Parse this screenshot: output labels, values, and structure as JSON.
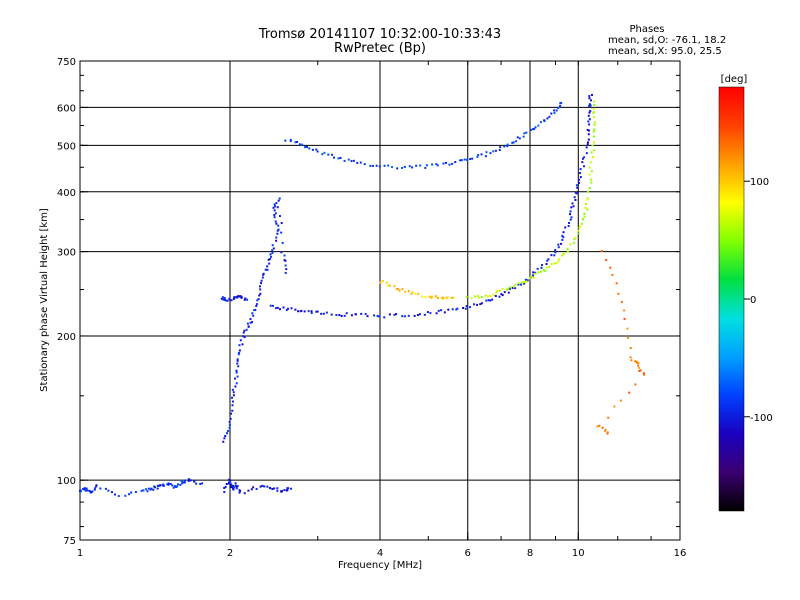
{
  "chart_data": {
    "type": "scatter",
    "title": "Tromsø 20141107 10:32:00-10:33:43",
    "subtitle": "RwPretec (Bp)",
    "xlabel": "Frequency [MHz]",
    "ylabel": "Stationary phase Virtual Height [km]",
    "xscale": "log",
    "yscale": "log",
    "xlim": [
      1,
      16
    ],
    "ylim": [
      75,
      750
    ],
    "xticks": [
      {
        "v": 1,
        "label": "1"
      },
      {
        "v": 2,
        "label": "2"
      },
      {
        "v": 4,
        "label": "4"
      },
      {
        "v": 6,
        "label": "6"
      },
      {
        "v": 8,
        "label": "8"
      },
      {
        "v": 10,
        "label": "10"
      },
      {
        "v": 16,
        "label": "16"
      }
    ],
    "yticks": [
      {
        "v": 75,
        "label": "75"
      },
      {
        "v": 100,
        "label": "100"
      },
      {
        "v": 200,
        "label": "200"
      },
      {
        "v": 300,
        "label": "300"
      },
      {
        "v": 400,
        "label": "400"
      },
      {
        "v": 500,
        "label": "500"
      },
      {
        "v": 600,
        "label": "600"
      },
      {
        "v": 750,
        "label": "750"
      }
    ],
    "xgrid": [
      2,
      4,
      6,
      8,
      10
    ],
    "ygrid": [
      100,
      200,
      300,
      400,
      500,
      600
    ],
    "grid": true,
    "stats": {
      "heading": "Phases",
      "line1": "mean, sd,O: -76.1, 18.2",
      "line2": "mean, sd,X:  95.0, 25.5"
    },
    "colorbar": {
      "label": "[deg]",
      "range": [
        -180,
        180
      ],
      "ticks": [
        {
          "v": 100,
          "label": "100"
        },
        {
          "v": 0,
          "label": "0"
        },
        {
          "v": -100,
          "label": "-100"
        }
      ],
      "colors": [
        "#000000",
        "#3a0070",
        "#1a00c0",
        "#0040ff",
        "#00a0ff",
        "#00e0e0",
        "#00e040",
        "#80ff00",
        "#ffff00",
        "#ffa000",
        "#ff4000",
        "#ff0000"
      ]
    },
    "series": [
      {
        "phase": -90,
        "points": [
          [
            1.0,
            95
          ],
          [
            1.03,
            96
          ],
          [
            1.05,
            94
          ],
          [
            1.08,
            97
          ],
          [
            1.2,
            93
          ],
          [
            1.35,
            95
          ],
          [
            1.4,
            96
          ],
          [
            1.45,
            97
          ],
          [
            1.5,
            98
          ],
          [
            1.55,
            97
          ],
          [
            1.6,
            99
          ],
          [
            1.65,
            100
          ],
          [
            1.75,
            98
          ]
        ]
      },
      {
        "phase": -100,
        "points": [
          [
            1.95,
            95
          ],
          [
            2.0,
            100
          ],
          [
            2.02,
            96
          ],
          [
            2.05,
            98
          ],
          [
            2.1,
            94
          ],
          [
            2.3,
            97
          ],
          [
            2.45,
            96
          ],
          [
            2.55,
            95
          ],
          [
            2.65,
            96
          ]
        ]
      },
      {
        "phase": -95,
        "points": [
          [
            1.95,
            120
          ],
          [
            2.0,
            130
          ],
          [
            2.02,
            145
          ],
          [
            2.05,
            160
          ],
          [
            2.08,
            175
          ],
          [
            2.1,
            190
          ],
          [
            2.15,
            205
          ],
          [
            2.2,
            215
          ],
          [
            2.25,
            230
          ],
          [
            2.3,
            250
          ],
          [
            2.35,
            270
          ],
          [
            2.4,
            290
          ],
          [
            2.45,
            310
          ],
          [
            2.5,
            340
          ],
          [
            2.45,
            365
          ],
          [
            2.5,
            385
          ],
          [
            2.55,
            300
          ],
          [
            2.6,
            270
          ]
        ]
      },
      {
        "phase": -100,
        "points": [
          [
            1.92,
            240
          ],
          [
            1.98,
            238
          ],
          [
            2.05,
            240
          ],
          [
            2.1,
            242
          ],
          [
            2.15,
            238
          ]
        ]
      },
      {
        "phase": -100,
        "points": [
          [
            2.4,
            230
          ],
          [
            2.6,
            228
          ],
          [
            2.8,
            226
          ],
          [
            3.0,
            224
          ],
          [
            3.3,
            222
          ],
          [
            3.6,
            221
          ],
          [
            4.0,
            220
          ],
          [
            4.5,
            221
          ],
          [
            5.0,
            223
          ],
          [
            5.5,
            226
          ],
          [
            6.0,
            230
          ],
          [
            6.5,
            236
          ],
          [
            7.0,
            243
          ],
          [
            7.5,
            253
          ],
          [
            8.0,
            265
          ],
          [
            8.5,
            280
          ],
          [
            9.0,
            300
          ],
          [
            9.3,
            320
          ],
          [
            9.6,
            350
          ],
          [
            9.8,
            380
          ],
          [
            10.0,
            410
          ],
          [
            10.2,
            450
          ],
          [
            10.4,
            500
          ],
          [
            10.5,
            550
          ],
          [
            10.55,
            600
          ],
          [
            10.6,
            640
          ]
        ]
      },
      {
        "phase": -85,
        "points": [
          [
            2.6,
            515
          ],
          [
            2.8,
            500
          ],
          [
            3.0,
            485
          ],
          [
            3.3,
            470
          ],
          [
            3.6,
            460
          ],
          [
            4.0,
            452
          ],
          [
            4.5,
            450
          ],
          [
            5.0,
            452
          ],
          [
            5.5,
            458
          ],
          [
            6.0,
            466
          ],
          [
            6.5,
            478
          ],
          [
            7.0,
            495
          ],
          [
            7.5,
            512
          ],
          [
            8.0,
            535
          ],
          [
            8.5,
            560
          ],
          [
            9.0,
            590
          ],
          [
            9.3,
            612
          ]
        ]
      },
      {
        "phase": 100,
        "points": [
          [
            4.0,
            260
          ],
          [
            4.3,
            252
          ],
          [
            4.6,
            246
          ],
          [
            5.0,
            242
          ],
          [
            5.3,
            240
          ],
          [
            5.6,
            239
          ]
        ]
      },
      {
        "phase": 60,
        "points": [
          [
            6.0,
            240
          ],
          [
            6.5,
            242
          ],
          [
            7.0,
            248
          ],
          [
            7.5,
            255
          ],
          [
            8.0,
            263
          ],
          [
            8.5,
            273
          ],
          [
            9.0,
            285
          ],
          [
            9.5,
            300
          ],
          [
            10.0,
            325
          ],
          [
            10.3,
            355
          ],
          [
            10.5,
            390
          ],
          [
            10.6,
            440
          ],
          [
            10.7,
            500
          ],
          [
            10.75,
            560
          ],
          [
            10.8,
            620
          ]
        ]
      },
      {
        "phase": 130,
        "points": [
          [
            11.2,
            300
          ],
          [
            12.2,
            235
          ],
          [
            12.8,
            180
          ],
          [
            13.2,
            175
          ],
          [
            13.5,
            165
          ],
          [
            11.0,
            130
          ],
          [
            11.5,
            125
          ]
        ]
      }
    ]
  }
}
